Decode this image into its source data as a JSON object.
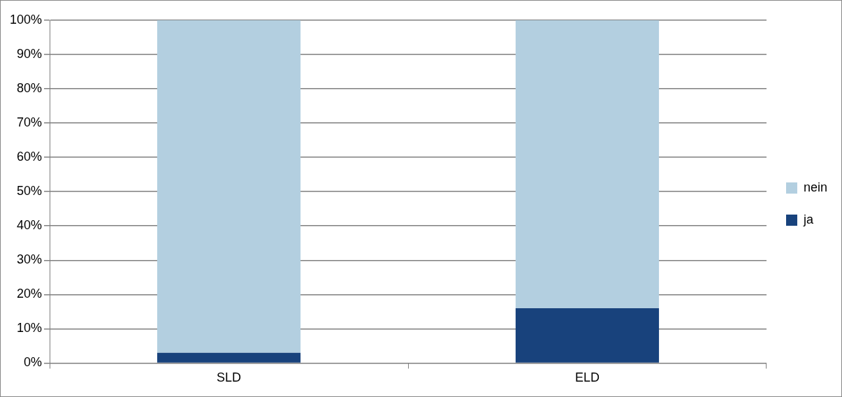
{
  "chart_data": {
    "type": "bar",
    "stacked": true,
    "categories": [
      "SLD",
      "ELD"
    ],
    "series": [
      {
        "name": "ja",
        "color": "#18427c",
        "values": [
          3,
          16
        ]
      },
      {
        "name": "nein",
        "color": "#b3cfe0",
        "values": [
          97,
          84
        ]
      }
    ],
    "ylim": [
      0,
      100
    ],
    "yticks": [
      {
        "value": 0,
        "label": "0%"
      },
      {
        "value": 10,
        "label": "10%"
      },
      {
        "value": 20,
        "label": "20%"
      },
      {
        "value": 30,
        "label": "30%"
      },
      {
        "value": 40,
        "label": "40%"
      },
      {
        "value": 50,
        "label": "50%"
      },
      {
        "value": 60,
        "label": "60%"
      },
      {
        "value": 70,
        "label": "70%"
      },
      {
        "value": 80,
        "label": "80%"
      },
      {
        "value": 90,
        "label": "90%"
      },
      {
        "value": 100,
        "label": "100%"
      }
    ],
    "grid": "y",
    "legend": "right"
  }
}
